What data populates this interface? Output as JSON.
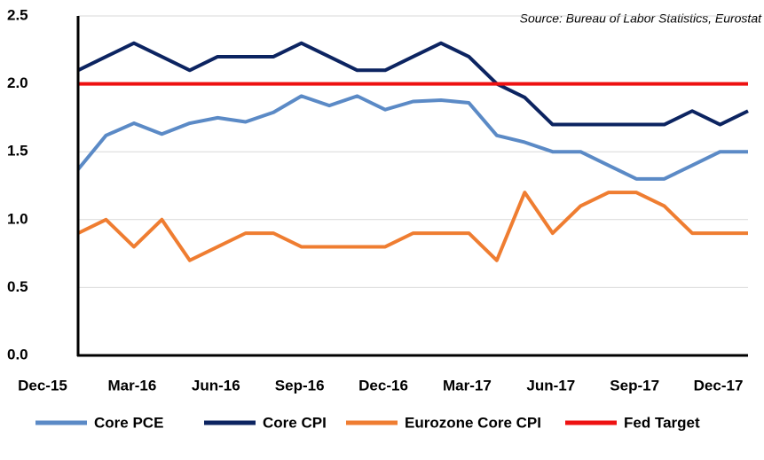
{
  "chart_data": {
    "type": "line",
    "annotation": "Source: Bureau of Labor Statistics, Eurostat",
    "categories": [
      "Dec-15",
      null,
      "Mar-16",
      null,
      null,
      "Jun-16",
      null,
      null,
      "Sep-16",
      null,
      null,
      "Dec-16",
      null,
      null,
      "Mar-17",
      null,
      null,
      "Jun-17",
      null,
      null,
      "Sep-17",
      null,
      null,
      "Dec-17",
      null
    ],
    "series": [
      {
        "name": "Core PCE",
        "color": "#5b8ac6",
        "values": [
          1.37,
          1.62,
          1.71,
          1.63,
          1.71,
          1.75,
          1.72,
          1.79,
          1.91,
          1.84,
          1.91,
          1.81,
          1.87,
          1.88,
          1.86,
          1.62,
          1.57,
          1.5,
          1.5,
          1.4,
          1.3,
          1.3,
          1.4,
          1.5,
          1.5
        ]
      },
      {
        "name": "Core CPI",
        "color": "#0c2461",
        "values": [
          2.1,
          2.2,
          2.3,
          2.2,
          2.1,
          2.2,
          2.2,
          2.2,
          2.3,
          2.2,
          2.1,
          2.1,
          2.2,
          2.3,
          2.2,
          2.0,
          1.9,
          1.7,
          1.7,
          1.7,
          1.7,
          1.7,
          1.8,
          1.7,
          1.8
        ]
      },
      {
        "name": "Eurozone Core CPI",
        "color": "#ef7d31",
        "values": [
          0.9,
          1.0,
          0.8,
          1.0,
          0.7,
          0.8,
          0.9,
          0.9,
          0.8,
          0.8,
          0.8,
          0.8,
          0.9,
          0.9,
          0.9,
          0.7,
          1.2,
          0.9,
          1.1,
          1.2,
          1.2,
          1.1,
          0.9,
          0.9,
          0.9
        ]
      },
      {
        "name": "Fed Target",
        "color": "#ee1111",
        "values": [
          2.0,
          2.0,
          2.0,
          2.0,
          2.0,
          2.0,
          2.0,
          2.0,
          2.0,
          2.0,
          2.0,
          2.0,
          2.0,
          2.0,
          2.0,
          2.0,
          2.0,
          2.0,
          2.0,
          2.0,
          2.0,
          2.0,
          2.0,
          2.0,
          2.0
        ]
      }
    ],
    "ylim": [
      0,
      2.5
    ],
    "yticks": [
      {
        "value": 0,
        "label": "0.0"
      },
      {
        "value": 0.5,
        "label": "0.5"
      },
      {
        "value": 1,
        "label": "1.0"
      },
      {
        "value": 1.5,
        "label": "1.5"
      },
      {
        "value": 2,
        "label": "2.0"
      },
      {
        "value": 2.5,
        "label": "2.5"
      }
    ],
    "grid": true
  }
}
